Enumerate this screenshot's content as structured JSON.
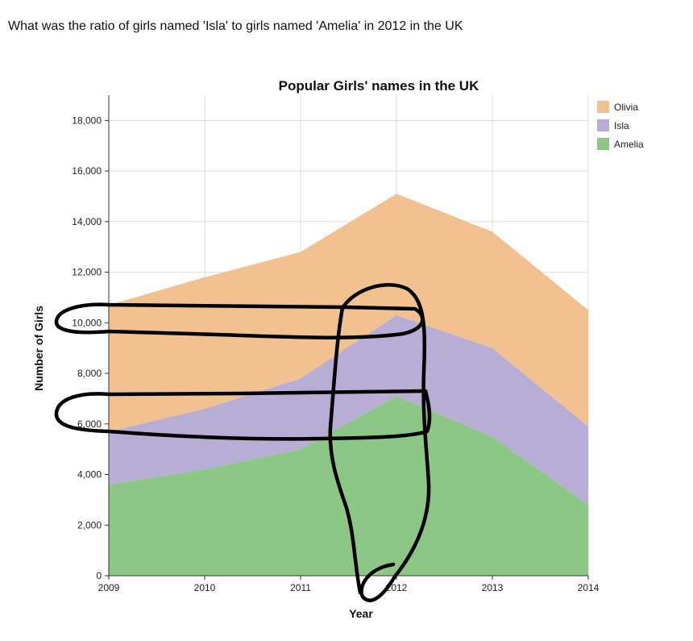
{
  "question": "What was the ratio of girls named 'Isla' to girls named 'Amelia' in 2012 in the UK",
  "chart_data": {
    "type": "area",
    "stacked": true,
    "title": "Popular Girls' names in the UK",
    "xlabel": "Year",
    "ylabel": "Number of Girls",
    "x": [
      2009,
      2010,
      2011,
      2012,
      2013,
      2014
    ],
    "x_tick_labels": [
      "2009",
      "2010",
      "2011",
      "2012",
      "2013",
      "2014"
    ],
    "ylim": [
      0,
      19000
    ],
    "y_ticks": [
      0,
      2000,
      4000,
      6000,
      8000,
      10000,
      12000,
      14000,
      16000,
      18000
    ],
    "y_tick_labels": [
      "0",
      "2,000",
      "4,000",
      "6,000",
      "8,000",
      "10,000",
      "12,000",
      "14,000",
      "16,000",
      "18,000"
    ],
    "grid": true,
    "legend_position": "top-right",
    "series": [
      {
        "name": "Amelia",
        "values": [
          3600,
          4200,
          5000,
          7100,
          5500,
          2800
        ],
        "color": "#8dc785"
      },
      {
        "name": "Isla",
        "values": [
          2100,
          2400,
          2800,
          3200,
          3500,
          3100
        ],
        "color": "#b8add4"
      },
      {
        "name": "Olivia",
        "values": [
          5000,
          5200,
          5000,
          4800,
          4600,
          4600
        ],
        "color": "#f2c190"
      }
    ],
    "legend_order": [
      "Olivia",
      "Isla",
      "Amelia"
    ]
  }
}
